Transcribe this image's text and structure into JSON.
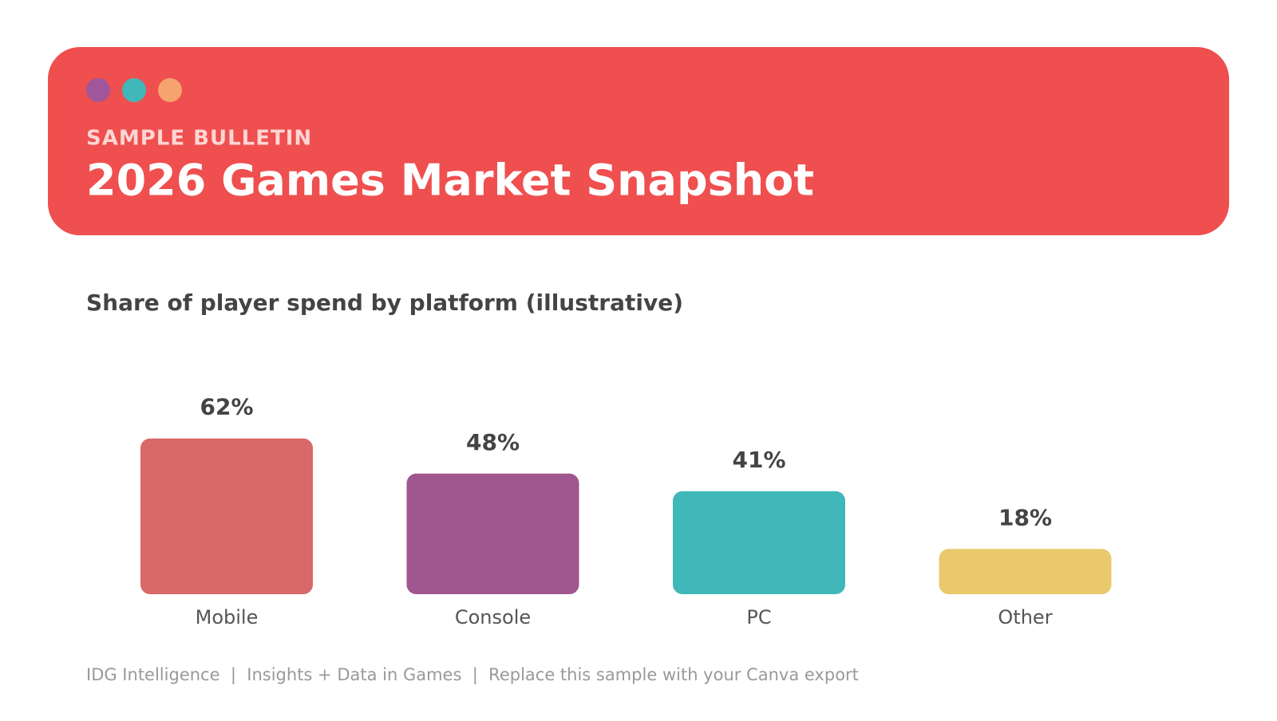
{
  "header": {
    "kicker": "SAMPLE BULLETIN",
    "title": "2026 Games Market Snapshot"
  },
  "chart_data": {
    "type": "bar",
    "title": "Share of player spend by platform (illustrative)",
    "categories": [
      "Mobile",
      "Console",
      "PC",
      "Other"
    ],
    "values": [
      62,
      48,
      41,
      18
    ],
    "value_labels": [
      "62%",
      "48%",
      "41%",
      "18%"
    ],
    "colors": [
      "#d96868",
      "#a0568f",
      "#40b8b9",
      "#e9c96c"
    ]
  },
  "footer": "IDG Intelligence  |  Insights + Data in Games  |  Replace this sample with your Canva export"
}
